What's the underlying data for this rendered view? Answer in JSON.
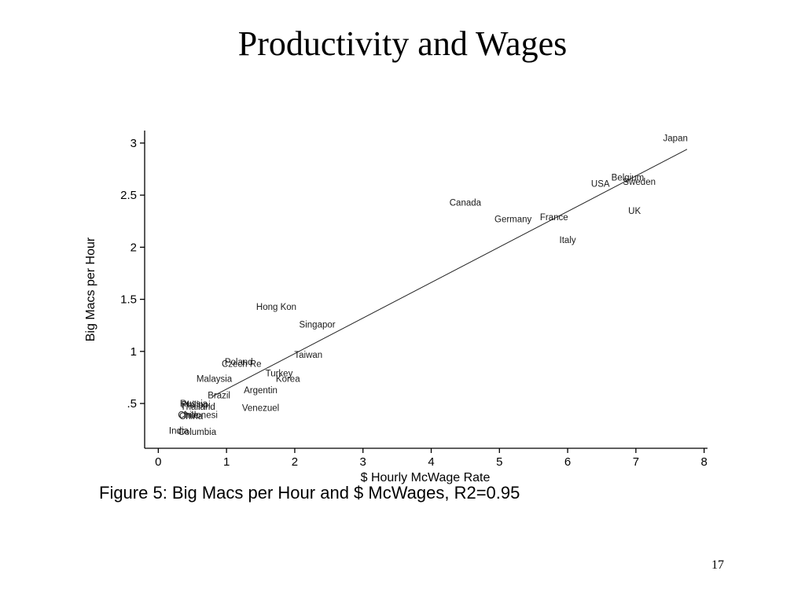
{
  "slide": {
    "title": "Productivity and Wages",
    "caption": "Figure 5: Big Macs per Hour and $ McWages, R2=0.95",
    "page_number": "17"
  },
  "chart_data": {
    "type": "scatter",
    "title": "",
    "xlabel": "$ Hourly McWage Rate",
    "ylabel": "Big Macs per Hour",
    "xlim": [
      -0.2,
      8.05
    ],
    "ylim": [
      0.07,
      3.12
    ],
    "x_ticks": [
      0,
      1,
      2,
      3,
      4,
      5,
      6,
      7,
      8
    ],
    "x_tick_labels": [
      "0",
      "1",
      "2",
      "3",
      "4",
      "5",
      "6",
      "7",
      "8"
    ],
    "y_ticks": [
      0.5,
      1,
      1.5,
      2,
      2.5,
      3
    ],
    "y_tick_labels": [
      ".5",
      "1",
      "1.5",
      "2",
      "2.5",
      "3"
    ],
    "grid": false,
    "legend": "none",
    "fit_line": {
      "x": [
        0.8,
        7.75
      ],
      "y": [
        0.57,
        2.94
      ]
    },
    "series": [
      {
        "marker": "label",
        "points": [
          {
            "label": "Japan",
            "x": 7.58,
            "y": 3.05
          },
          {
            "label": "Belgium",
            "x": 6.88,
            "y": 2.67
          },
          {
            "label": "USA",
            "x": 6.48,
            "y": 2.61
          },
          {
            "label": "Sweden",
            "x": 7.05,
            "y": 2.63
          },
          {
            "label": "UK",
            "x": 6.98,
            "y": 2.35
          },
          {
            "label": "Canada",
            "x": 4.5,
            "y": 2.43
          },
          {
            "label": "Germany",
            "x": 5.2,
            "y": 2.27
          },
          {
            "label": "France",
            "x": 5.8,
            "y": 2.29
          },
          {
            "label": "Italy",
            "x": 6.0,
            "y": 2.07
          },
          {
            "label": "Hong Kon",
            "x": 1.73,
            "y": 1.43
          },
          {
            "label": "Singapor",
            "x": 2.33,
            "y": 1.26
          },
          {
            "label": "Taiwan",
            "x": 2.2,
            "y": 0.97
          },
          {
            "label": "Poland",
            "x": 1.18,
            "y": 0.9
          },
          {
            "label": "Czech Re",
            "x": 1.22,
            "y": 0.88
          },
          {
            "label": "Turkey",
            "x": 1.77,
            "y": 0.79
          },
          {
            "label": "Korea",
            "x": 1.9,
            "y": 0.74
          },
          {
            "label": "Malaysia",
            "x": 0.82,
            "y": 0.74
          },
          {
            "label": "Argentin",
            "x": 1.5,
            "y": 0.63
          },
          {
            "label": "Brazil",
            "x": 0.89,
            "y": 0.58
          },
          {
            "label": "Venezuel",
            "x": 1.5,
            "y": 0.46
          },
          {
            "label": "Russia",
            "x": 0.52,
            "y": 0.5
          },
          {
            "label": "Philippi",
            "x": 0.55,
            "y": 0.49
          },
          {
            "label": "Thailand",
            "x": 0.58,
            "y": 0.47
          },
          {
            "label": "Chile",
            "x": 0.44,
            "y": 0.39
          },
          {
            "label": "Indonesi",
            "x": 0.62,
            "y": 0.39
          },
          {
            "label": "China",
            "x": 0.48,
            "y": 0.38
          },
          {
            "label": "India",
            "x": 0.3,
            "y": 0.24
          },
          {
            "label": "Columbia",
            "x": 0.57,
            "y": 0.23
          }
        ]
      }
    ]
  }
}
